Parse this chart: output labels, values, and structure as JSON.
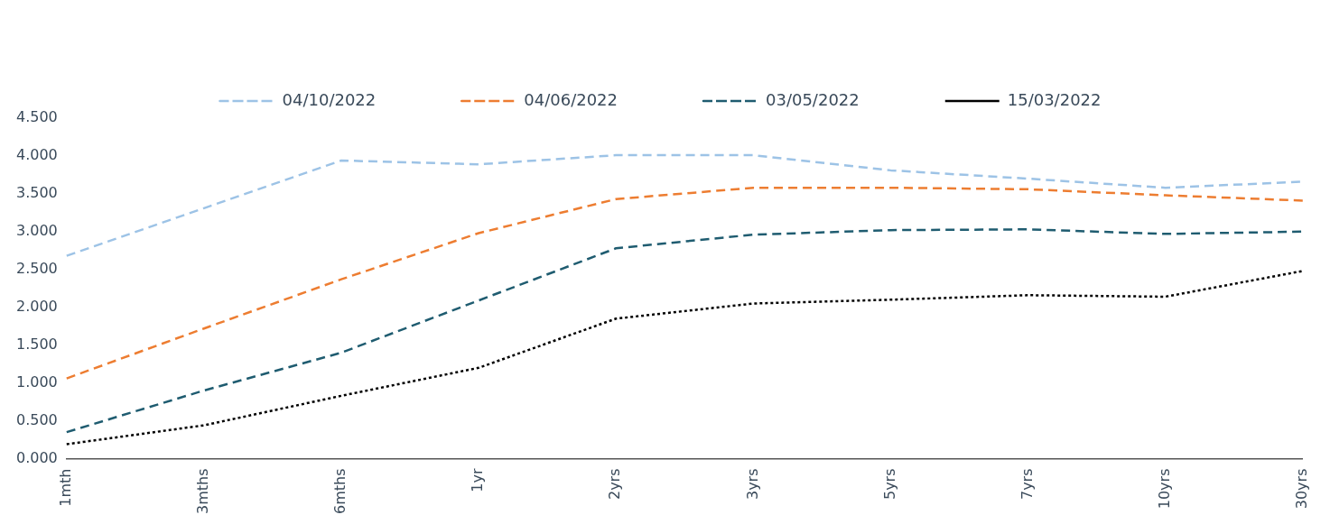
{
  "chart_data": {
    "type": "line",
    "categories": [
      "1mth",
      "3mths",
      "6mths",
      "1yr",
      "2yrs",
      "3yrs",
      "5yrs",
      "7yrs",
      "10yrs",
      "30yrs"
    ],
    "series": [
      {
        "name": "04/10/2022",
        "color": "#9dc3e6",
        "line_style": "dashed",
        "values": [
          2.68,
          3.31,
          3.94,
          3.89,
          4.01,
          4.01,
          3.81,
          3.7,
          3.58,
          3.66
        ]
      },
      {
        "name": "04/06/2022",
        "color": "#ed7d31",
        "line_style": "dashed",
        "values": [
          1.06,
          1.72,
          2.37,
          2.98,
          3.43,
          3.58,
          3.58,
          3.56,
          3.48,
          3.41
        ]
      },
      {
        "name": "03/05/2022",
        "color": "#1f5c70",
        "line_style": "dashed",
        "values": [
          0.35,
          0.9,
          1.4,
          2.09,
          2.78,
          2.96,
          3.02,
          3.03,
          2.97,
          3.0
        ]
      },
      {
        "name": "15/03/2022",
        "color": "#000000",
        "line_style": "dotted",
        "values": [
          0.19,
          0.44,
          0.83,
          1.2,
          1.85,
          2.05,
          2.1,
          2.16,
          2.14,
          2.48
        ]
      }
    ],
    "ylim": [
      0,
      4.5
    ],
    "yticks": [
      {
        "value": 0,
        "label": "0.000"
      },
      {
        "value": 0.5,
        "label": "0.500"
      },
      {
        "value": 1,
        "label": "1.000"
      },
      {
        "value": 1.5,
        "label": "1.500"
      },
      {
        "value": 2,
        "label": "2.000"
      },
      {
        "value": 2.5,
        "label": "2.500"
      },
      {
        "value": 3,
        "label": "3.000"
      },
      {
        "value": 3.5,
        "label": "3.500"
      },
      {
        "value": 4,
        "label": "4.000"
      },
      {
        "value": 4.5,
        "label": "4.500"
      }
    ],
    "grid": false,
    "legend": "top",
    "marker": "none"
  }
}
